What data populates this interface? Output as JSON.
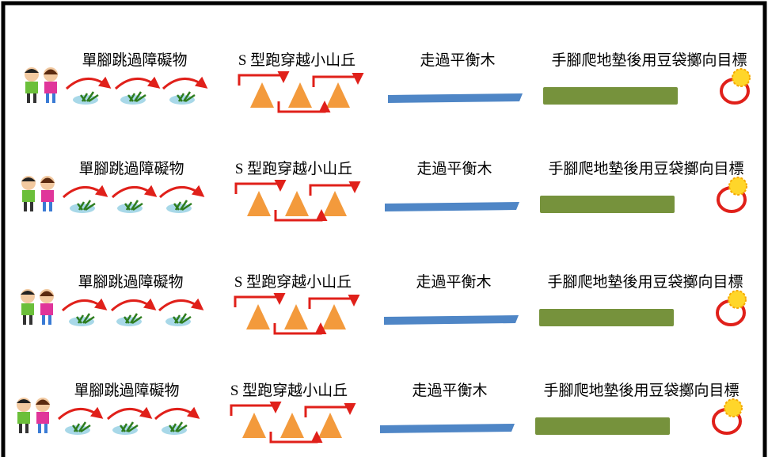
{
  "rows": [
    {
      "stations": [
        "單腳跳過障礙物",
        "S 型跑穿越小山丘",
        "走過平衡木",
        "手腳爬地墊後用豆袋擲向目標"
      ]
    },
    {
      "stations": [
        "單腳跳過障礙物",
        "S 型跑穿越小山丘",
        "走過平衡木",
        "手腳爬地墊後用豆袋擲向目標"
      ]
    },
    {
      "stations": [
        "單腳跳過障礙物",
        "S 型跑穿越小山丘",
        "走過平衡木",
        "手腳爬地墊後用豆袋擲向目標"
      ]
    },
    {
      "stations": [
        "單腳跳過障礙物",
        "S 型跑穿越小山丘",
        "走過平衡木",
        "手腳爬地墊後用豆袋擲向目標"
      ]
    }
  ]
}
